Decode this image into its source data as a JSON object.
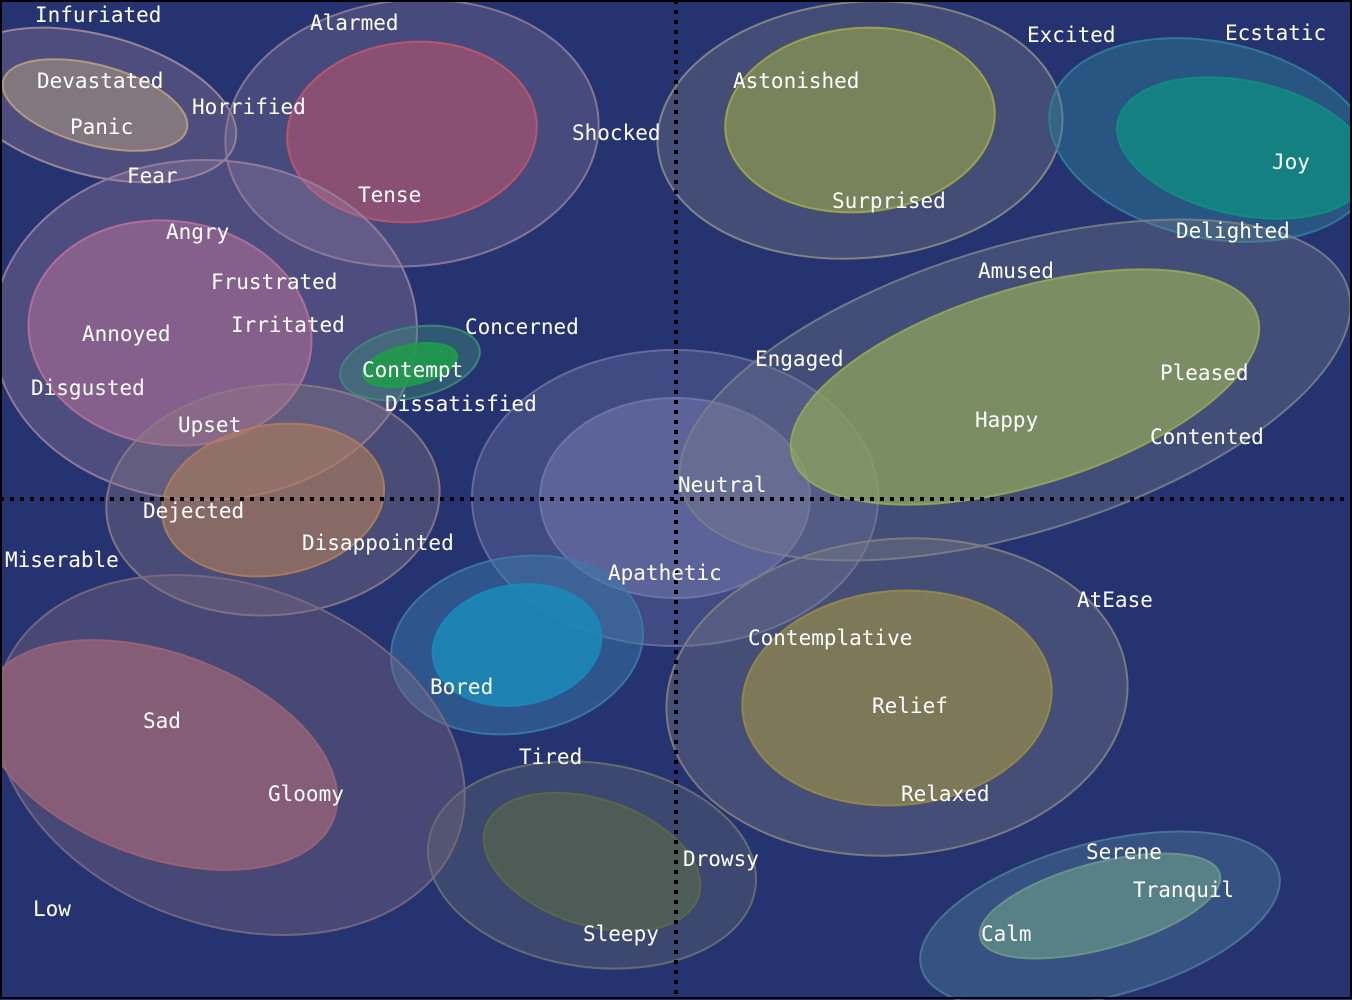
{
  "colors": {
    "background": "#253370",
    "axis": "#000000",
    "label": "#ffffff"
  },
  "regions": [
    {
      "name": "fear-region",
      "color": "#a38a9b",
      "fill_opacity": 0.32
    },
    {
      "name": "panic-region",
      "color": "#b8a080",
      "fill_opacity": 0.5
    },
    {
      "name": "alarmed-outer-region",
      "color": "#8e7b97",
      "fill_opacity": 0.32
    },
    {
      "name": "tense-region",
      "color": "#c0566e",
      "fill_opacity": 0.55
    },
    {
      "name": "angry-outer-region",
      "color": "#987e9f",
      "fill_opacity": 0.35
    },
    {
      "name": "annoyed-region",
      "color": "#b67197",
      "fill_opacity": 0.55
    },
    {
      "name": "upset-outer-region",
      "color": "#8b7b82",
      "fill_opacity": 0.35
    },
    {
      "name": "disappointed-region",
      "color": "#b07d5c",
      "fill_opacity": 0.6
    },
    {
      "name": "contempt-outer-region",
      "color": "#3f8a77",
      "fill_opacity": 0.45
    },
    {
      "name": "contempt-region",
      "color": "#1e9e4a",
      "fill_opacity": 0.85
    },
    {
      "name": "neutral-outer-region",
      "color": "#6a6ea0",
      "fill_opacity": 0.4
    },
    {
      "name": "neutral-region",
      "color": "#7075a8",
      "fill_opacity": 0.6
    },
    {
      "name": "astonished-outer-region",
      "color": "#8a8c86",
      "fill_opacity": 0.3
    },
    {
      "name": "surprised-region",
      "color": "#9fa84a",
      "fill_opacity": 0.6
    },
    {
      "name": "ecstatic-outer-region",
      "color": "#2f7f9a",
      "fill_opacity": 0.45
    },
    {
      "name": "joy-region",
      "color": "#0f8f80",
      "fill_opacity": 0.75
    },
    {
      "name": "amused-outer-region",
      "color": "#777f88",
      "fill_opacity": 0.35
    },
    {
      "name": "happy-region",
      "color": "#93a85a",
      "fill_opacity": 0.7
    },
    {
      "name": "bored-outer-region",
      "color": "#3a7aa8",
      "fill_opacity": 0.5
    },
    {
      "name": "bored-region",
      "color": "#1a8ab8",
      "fill_opacity": 0.85
    },
    {
      "name": "sad-outer-region",
      "color": "#7a6880",
      "fill_opacity": 0.4
    },
    {
      "name": "sad-region",
      "color": "#9a6478",
      "fill_opacity": 0.75
    },
    {
      "name": "tired-outer-region",
      "color": "#6b7070",
      "fill_opacity": 0.35
    },
    {
      "name": "sleepy-region",
      "color": "#5a6a46",
      "fill_opacity": 0.6
    },
    {
      "name": "relaxed-outer-region",
      "color": "#828080",
      "fill_opacity": 0.35
    },
    {
      "name": "relief-region",
      "color": "#968a4a",
      "fill_opacity": 0.7
    },
    {
      "name": "serene-outer-region",
      "color": "#4a7898",
      "fill_opacity": 0.45
    },
    {
      "name": "calm-region",
      "color": "#6a9a8a",
      "fill_opacity": 0.65
    }
  ],
  "labels": [
    {
      "text": "Infuriated"
    },
    {
      "text": "Alarmed"
    },
    {
      "text": "Excited"
    },
    {
      "text": "Ecstatic"
    },
    {
      "text": "Devastated"
    },
    {
      "text": "Astonished"
    },
    {
      "text": "Horrified"
    },
    {
      "text": "Panic"
    },
    {
      "text": "Shocked"
    },
    {
      "text": "Joy"
    },
    {
      "text": "Fear"
    },
    {
      "text": "Tense"
    },
    {
      "text": "Surprised"
    },
    {
      "text": "Angry"
    },
    {
      "text": "Delighted"
    },
    {
      "text": "Amused"
    },
    {
      "text": "Frustrated"
    },
    {
      "text": "Irritated"
    },
    {
      "text": "Concerned"
    },
    {
      "text": "Annoyed"
    },
    {
      "text": "Engaged"
    },
    {
      "text": "Contempt"
    },
    {
      "text": "Pleased"
    },
    {
      "text": "Disgusted"
    },
    {
      "text": "Dissatisfied"
    },
    {
      "text": "Happy"
    },
    {
      "text": "Upset"
    },
    {
      "text": "Contented"
    },
    {
      "text": "Neutral"
    },
    {
      "text": "Dejected"
    },
    {
      "text": "Disappointed"
    },
    {
      "text": "Miserable"
    },
    {
      "text": "Apathetic"
    },
    {
      "text": "AtEase"
    },
    {
      "text": "Contemplative"
    },
    {
      "text": "Bored"
    },
    {
      "text": "Relief"
    },
    {
      "text": "Sad"
    },
    {
      "text": "Tired"
    },
    {
      "text": "Gloomy"
    },
    {
      "text": "Relaxed"
    },
    {
      "text": "Serene"
    },
    {
      "text": "Drowsy"
    },
    {
      "text": "Tranquil"
    },
    {
      "text": "Low"
    },
    {
      "text": "Sleepy"
    },
    {
      "text": "Calm"
    }
  ]
}
